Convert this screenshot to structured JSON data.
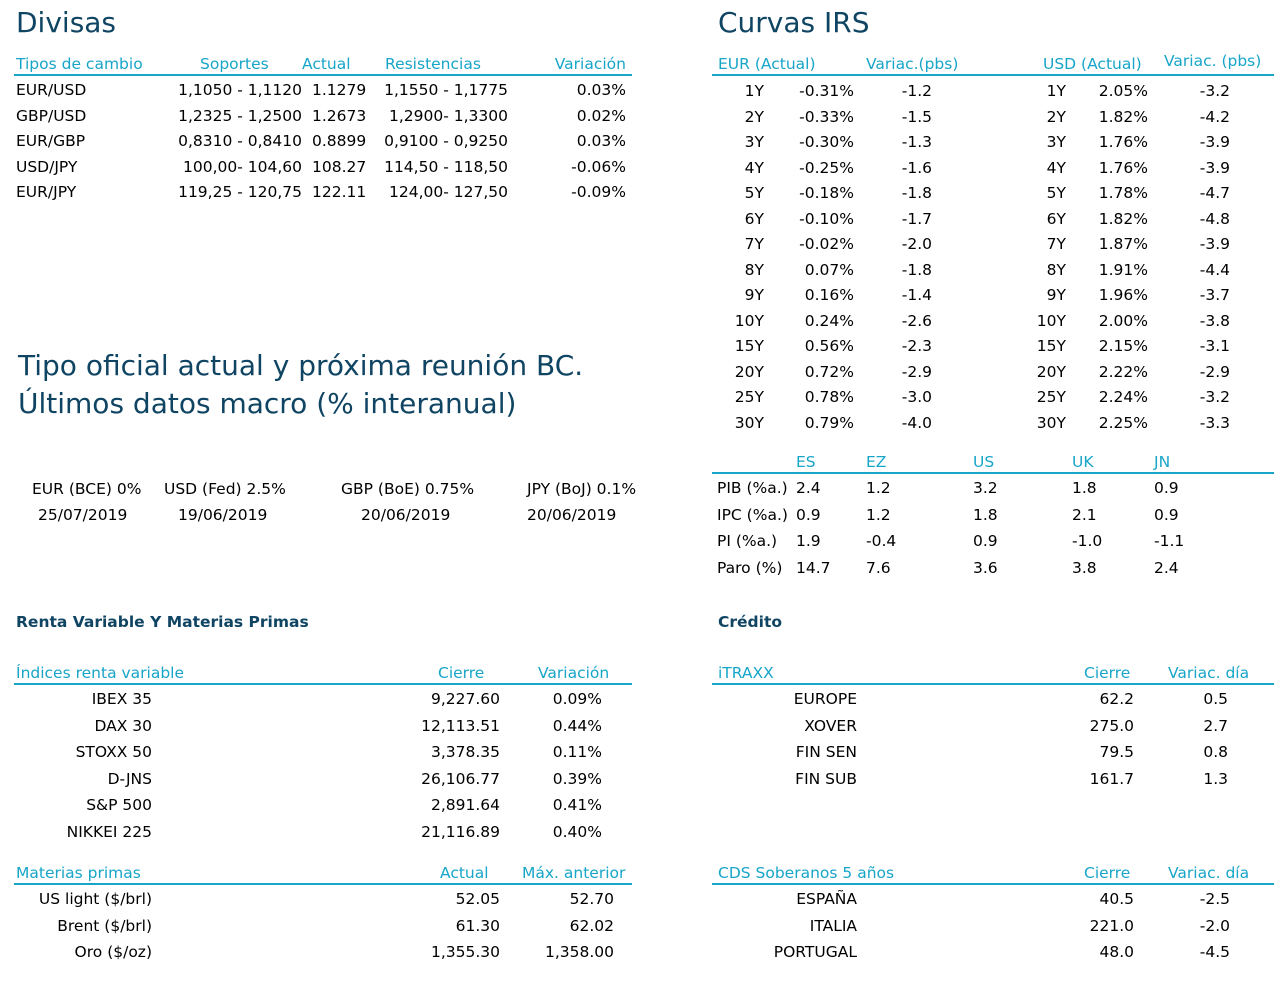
{
  "divisas": {
    "title": "Divisas",
    "headers": [
      "Tipos de cambio",
      "Soportes",
      "Actual",
      "Resistencias",
      "Variación"
    ],
    "rows": [
      [
        "EUR/USD",
        "1,1050 - 1,1120",
        "1.1279",
        "1,1550 - 1,1775",
        "0.03%"
      ],
      [
        "GBP/USD",
        "1,2325 - 1,2500",
        "1.2673",
        "1,2900- 1,3300",
        "0.02%"
      ],
      [
        "EUR/GBP",
        "0,8310 - 0,8410",
        "0.8899",
        "0,9100 - 0,9250",
        "0.03%"
      ],
      [
        "USD/JPY",
        "100,00- 104,60",
        "108.27",
        "114,50 - 118,50",
        "-0.06%"
      ],
      [
        "EUR/JPY",
        "119,25 - 120,75",
        "122.11",
        "124,00- 127,50",
        "-0.09%"
      ]
    ]
  },
  "irs": {
    "title": "Curvas IRS",
    "headers": [
      "EUR (Actual)",
      "Variac.(pbs)",
      "USD (Actual)",
      "Variac. (pbs)"
    ],
    "rows": [
      [
        "1Y",
        "-0.31%",
        "-1.2",
        "1Y",
        "2.05%",
        "-3.2"
      ],
      [
        "2Y",
        "-0.33%",
        "-1.5",
        "2Y",
        "1.82%",
        "-4.2"
      ],
      [
        "3Y",
        "-0.30%",
        "-1.3",
        "3Y",
        "1.76%",
        "-3.9"
      ],
      [
        "4Y",
        "-0.25%",
        "-1.6",
        "4Y",
        "1.76%",
        "-3.9"
      ],
      [
        "5Y",
        "-0.18%",
        "-1.8",
        "5Y",
        "1.78%",
        "-4.7"
      ],
      [
        "6Y",
        "-0.10%",
        "-1.7",
        "6Y",
        "1.82%",
        "-4.8"
      ],
      [
        "7Y",
        "-0.02%",
        "-2.0",
        "7Y",
        "1.87%",
        "-3.9"
      ],
      [
        "8Y",
        "0.07%",
        "-1.8",
        "8Y",
        "1.91%",
        "-4.4"
      ],
      [
        "9Y",
        "0.16%",
        "-1.4",
        "9Y",
        "1.96%",
        "-3.7"
      ],
      [
        "10Y",
        "0.24%",
        "-2.6",
        "10Y",
        "2.00%",
        "-3.8"
      ],
      [
        "15Y",
        "0.56%",
        "-2.3",
        "15Y",
        "2.15%",
        "-3.1"
      ],
      [
        "20Y",
        "0.72%",
        "-2.9",
        "20Y",
        "2.22%",
        "-2.9"
      ],
      [
        "25Y",
        "0.78%",
        "-3.0",
        "25Y",
        "2.24%",
        "-3.2"
      ],
      [
        "30Y",
        "0.79%",
        "-4.0",
        "30Y",
        "2.25%",
        "-3.3"
      ]
    ]
  },
  "tipo_oficial": {
    "title_line1": "Tipo oficial actual y próxima reunión BC.",
    "title_line2": "Últimos datos macro (% interanual)",
    "rates": [
      "EUR (BCE) 0%",
      "USD (Fed) 2.5%",
      "GBP (BoE) 0.75%",
      "JPY (BoJ) 0.1%"
    ],
    "dates": [
      "25/07/2019",
      "19/06/2019",
      "20/06/2019",
      "20/06/2019"
    ]
  },
  "macro": {
    "headers": [
      "ES",
      "EZ",
      "US",
      "UK",
      "JN"
    ],
    "rows": [
      [
        "PIB (%a.)",
        "2.4",
        "1.2",
        "3.2",
        "1.8",
        "0.9"
      ],
      [
        "IPC (%a.)",
        "0.9",
        "1.2",
        "1.8",
        "2.1",
        "0.9"
      ],
      [
        "PI (%a.)",
        "1.9",
        "-0.4",
        "0.9",
        "-1.0",
        "-1.1"
      ],
      [
        "Paro (%)",
        "14.7",
        "7.6",
        "3.6",
        "3.8",
        "2.4"
      ]
    ]
  },
  "renta": {
    "title": "Renta Variable Y Materias Primas",
    "headers": [
      "Índices renta variable",
      "Cierre",
      "Variación"
    ],
    "rows": [
      [
        "IBEX 35",
        "9,227.60",
        "0.09%"
      ],
      [
        "DAX 30",
        "12,113.51",
        "0.44%"
      ],
      [
        "STOXX 50",
        "3,378.35",
        "0.11%"
      ],
      [
        "D-JNS",
        "26,106.77",
        "0.39%"
      ],
      [
        "S&P 500",
        "2,891.64",
        "0.41%"
      ],
      [
        "NIKKEI 225",
        "21,116.89",
        "0.40%"
      ]
    ]
  },
  "materias": {
    "headers": [
      "Materias primas",
      "Actual",
      "Máx. anterior"
    ],
    "rows": [
      [
        "US light ($/brl)",
        "52.05",
        "52.70"
      ],
      [
        "Brent ($/brl)",
        "61.30",
        "62.02"
      ],
      [
        "Oro ($/oz)",
        "1,355.30",
        "1,358.00"
      ]
    ]
  },
  "credito": {
    "title": "Crédito",
    "headers": [
      "iTRAXX",
      "Cierre",
      "Variac. día"
    ],
    "rows": [
      [
        "EUROPE",
        "62.2",
        "0.5"
      ],
      [
        "XOVER",
        "275.0",
        "2.7"
      ],
      [
        "FIN SEN",
        "79.5",
        "0.8"
      ],
      [
        "FIN SUB",
        "161.7",
        "1.3"
      ]
    ]
  },
  "cds": {
    "headers": [
      "CDS Soberanos 5 años",
      "Cierre",
      "Variac. día"
    ],
    "rows": [
      [
        "ESPAÑA",
        "40.5",
        "-2.5"
      ],
      [
        "ITALIA",
        "221.0",
        "-2.0"
      ],
      [
        "PORTUGAL",
        "48.0",
        "-4.5"
      ]
    ]
  },
  "colors": {
    "accent": "#17a5c8",
    "title": "#0f4463"
  }
}
